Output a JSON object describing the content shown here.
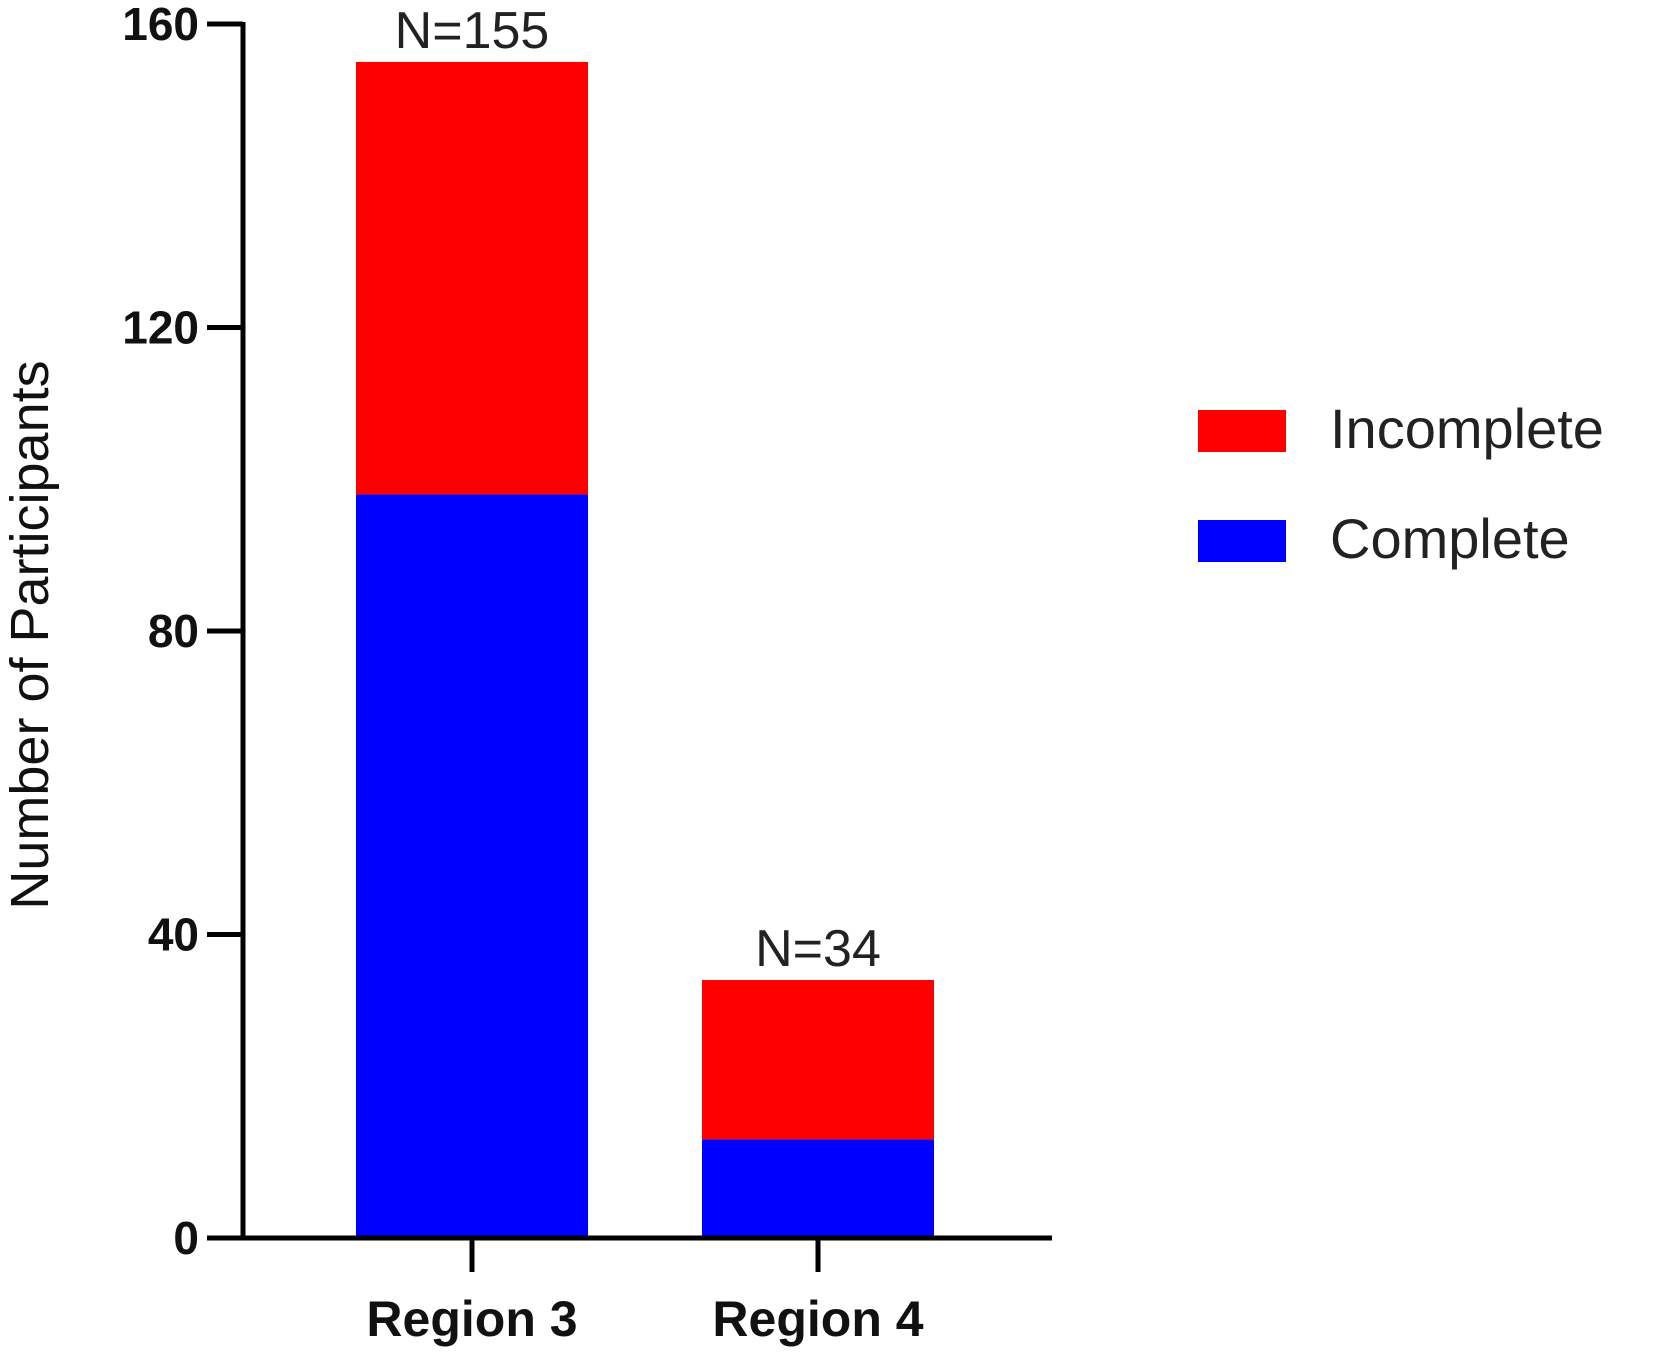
{
  "chart_data": {
    "type": "bar",
    "stacked": true,
    "categories": [
      "Region 3",
      "Region 4"
    ],
    "series": [
      {
        "name": "Complete",
        "values": [
          98,
          13
        ],
        "color": "#0000ff"
      },
      {
        "name": "Incomplete",
        "values": [
          57,
          21
        ],
        "color": "#ff0000"
      }
    ],
    "annotations": [
      "N=155",
      "N=34"
    ],
    "ylabel": "Number of Participants",
    "xlabel": "",
    "ylim": [
      0,
      160
    ],
    "yticks": [
      0,
      40,
      80,
      120,
      160
    ],
    "legend": {
      "position": "right",
      "order": [
        "Incomplete",
        "Complete"
      ]
    },
    "grid": false
  }
}
